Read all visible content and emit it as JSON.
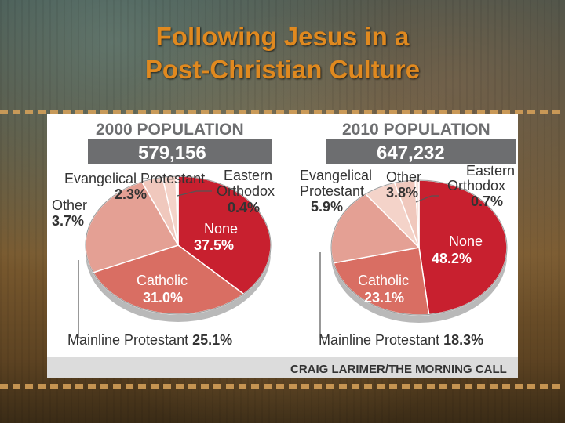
{
  "slide": {
    "title_line1": "Following Jesus in a",
    "title_line2": "Post-Christian Culture"
  },
  "credit": "CRAIG LARIMER/THE MORNING CALL",
  "colors": {
    "title": "#e0891f",
    "none": "#c8202f",
    "catholic": "#d96e63",
    "mainline": "#e4a094",
    "other": "#f0c8bd",
    "evangelical": "#f4d3c9",
    "orthodox": "#fae6df",
    "header_bar": "#6d6e70"
  },
  "chart_data": [
    {
      "type": "pie",
      "title": "2000 POPULATION",
      "total": "579,156",
      "slices": [
        {
          "label": "None",
          "value": 37.5,
          "display": "37.5%"
        },
        {
          "label": "Catholic",
          "value": 31.0,
          "display": "31.0%"
        },
        {
          "label": "Mainline Protestant",
          "value": 25.1,
          "display": "25.1%"
        },
        {
          "label": "Other",
          "value": 3.7,
          "display": "3.7%"
        },
        {
          "label": "Evangelical Protestant",
          "value": 2.3,
          "display": "2.3%"
        },
        {
          "label": "Eastern Orthodox",
          "value": 0.4,
          "display": "0.4%"
        }
      ]
    },
    {
      "type": "pie",
      "title": "2010 POPULATION",
      "total": "647,232",
      "slices": [
        {
          "label": "None",
          "value": 48.2,
          "display": "48.2%"
        },
        {
          "label": "Catholic",
          "value": 23.1,
          "display": "23.1%"
        },
        {
          "label": "Mainline Protestant",
          "value": 18.3,
          "display": "18.3%"
        },
        {
          "label": "Evangelical Protestant",
          "value": 5.9,
          "display": "5.9%"
        },
        {
          "label": "Other",
          "value": 3.8,
          "display": "3.8%"
        },
        {
          "label": "Eastern Orthodox",
          "value": 0.7,
          "display": "0.7%"
        }
      ]
    }
  ]
}
